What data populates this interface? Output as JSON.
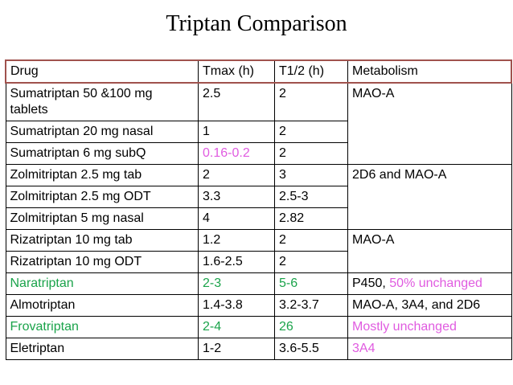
{
  "title": "Triptan Comparison",
  "colors": {
    "green": "#1aa34a",
    "pink": "#e05be0",
    "header_border": "#a0524d"
  },
  "table": {
    "headers": [
      "Drug",
      "Tmax (h)",
      "T1/2 (h)",
      "Metabolism"
    ],
    "rows": [
      {
        "drug": "Sumatriptan 50 &100 mg tablets",
        "tmax": "2.5",
        "thalf": "2"
      },
      {
        "drug": "Sumatriptan 20 mg nasal",
        "tmax": "1",
        "thalf": "2"
      },
      {
        "drug": "Sumatriptan 6 mg subQ",
        "tmax": "0.16-0.2",
        "thalf": "2"
      },
      {
        "drug": "Zolmitriptan 2.5 mg tab",
        "tmax": "2",
        "thalf": "3"
      },
      {
        "drug": "Zolmitriptan 2.5 mg ODT",
        "tmax": "3.3",
        "thalf": "2.5-3"
      },
      {
        "drug": "Zolmitriptan 5 mg nasal",
        "tmax": "4",
        "thalf": "2.82"
      },
      {
        "drug": "Rizatriptan 10 mg tab",
        "tmax": "1.2",
        "thalf": "2"
      },
      {
        "drug": "Rizatriptan 10 mg ODT",
        "tmax": "1.6-2.5",
        "thalf": "2"
      },
      {
        "drug": "Naratriptan",
        "tmax": "2-3",
        "thalf": "5-6"
      },
      {
        "drug": "Almotriptan",
        "tmax": "1.4-3.8",
        "thalf": "3.2-3.7"
      },
      {
        "drug": "Frovatriptan",
        "tmax": "2-4",
        "thalf": "26"
      },
      {
        "drug": "Eletriptan",
        "tmax": "1-2",
        "thalf": "3.6-5.5"
      }
    ],
    "metabolism": {
      "sumatriptan": "MAO-A",
      "zolmitriptan": "2D6 and MAO-A",
      "rizatriptan": "MAO-A",
      "naratriptan_a": "P450, ",
      "naratriptan_b": "50% unchanged",
      "almotriptan": "MAO-A, 3A4, and 2D6",
      "frovatriptan": "Mostly unchanged",
      "eletriptan": "3A4"
    }
  }
}
